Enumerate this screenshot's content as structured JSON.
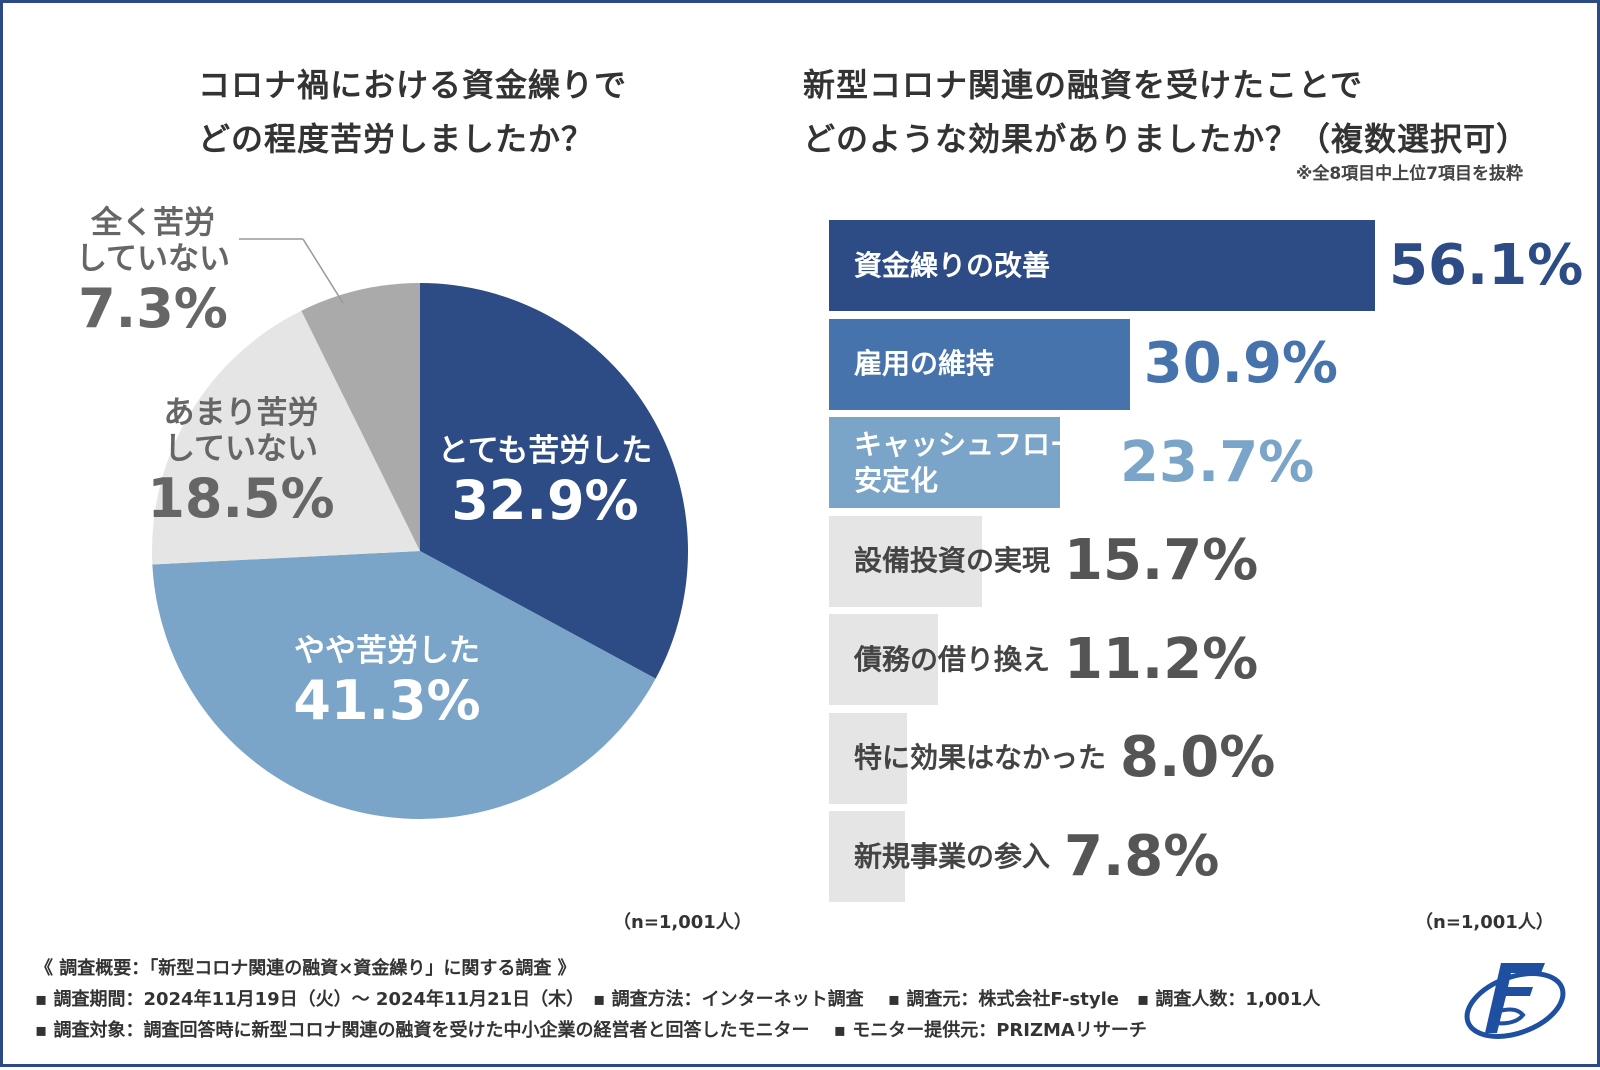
{
  "left_title": "コロナ禍における資金繰りで\nどの程度苦労しましたか？",
  "right_title": "新型コロナ関連の融資を受けたことで\nどのような効果がありましたか？（複数選択可）",
  "right_note": "※全8項目中上位7項目を抜粋",
  "chart_data": [
    {
      "type": "pie",
      "title": "コロナ禍における資金繰りで どの程度苦労しましたか？",
      "slices": [
        {
          "label": "とても苦労した",
          "value": 32.9,
          "value_label": "32.9%",
          "color": "#2d4b84",
          "text_color": "#ffffff"
        },
        {
          "label": "やや苦労した",
          "value": 41.3,
          "value_label": "41.3%",
          "color": "#7aa4c8",
          "text_color": "#ffffff"
        },
        {
          "label": "あまり苦労\nしていない",
          "value": 18.5,
          "value_label": "18.5%",
          "color": "#e5e5e5",
          "text_color": "#666666"
        },
        {
          "label": "全く苦労\nしていない",
          "value": 7.3,
          "value_label": "7.3%",
          "color": "#aaaaaa",
          "text_color": "#666666"
        }
      ],
      "n_label": "（n=1,001人）"
    },
    {
      "type": "bar",
      "orientation": "horizontal",
      "title": "新型コロナ関連の融資を受けたことで どのような効果がありましたか？（複数選択可）",
      "categories": [
        "資金繰りの改善",
        "雇用の維持",
        "キャッシュフローの\n安定化",
        "設備投資の実現",
        "債務の借り換え",
        "特に効果はなかった",
        "新規事業の参入"
      ],
      "values": [
        56.1,
        30.9,
        23.7,
        15.7,
        11.2,
        8.0,
        7.8
      ],
      "value_labels": [
        "56.1%",
        "30.9%",
        "23.7%",
        "15.7%",
        "11.2%",
        "8.0%",
        "7.8%"
      ],
      "bar_colors": [
        "#2d4b84",
        "#4773ad",
        "#7aa4c8",
        "#e5e5e5",
        "#e5e5e5",
        "#e5e5e5",
        "#e5e5e5"
      ],
      "label_colors": [
        "#ffffff",
        "#ffffff",
        "#ffffff",
        "#444444",
        "#444444",
        "#444444",
        "#444444"
      ],
      "value_colors": [
        "#2d4b84",
        "#4773ad",
        "#7aa4c8",
        "#555555",
        "#555555",
        "#555555",
        "#555555"
      ],
      "xlim": [
        0,
        56.1
      ],
      "n_label": "（n=1,001人）"
    }
  ],
  "footer": {
    "line1": "《 調査概要：「新型コロナ関連の融資×資金繰り」に関する調査 》",
    "line2": "▪ 調査期間：2024年11月19日（火）～ 2024年11月21日（木）　▪ 調査方法：インターネット調査　 ▪ 調査元：株式会社F-style　▪ 調査人数：1,001人",
    "line3": "▪ 調査対象：調査回答時に新型コロナ関連の融資を受けた中小企業の経営者と回答したモニター　 ▪ モニター提供元：PRIZMAリサーチ"
  },
  "logo": {
    "icon": "f-style-logo",
    "color": "#1e4fa0"
  }
}
